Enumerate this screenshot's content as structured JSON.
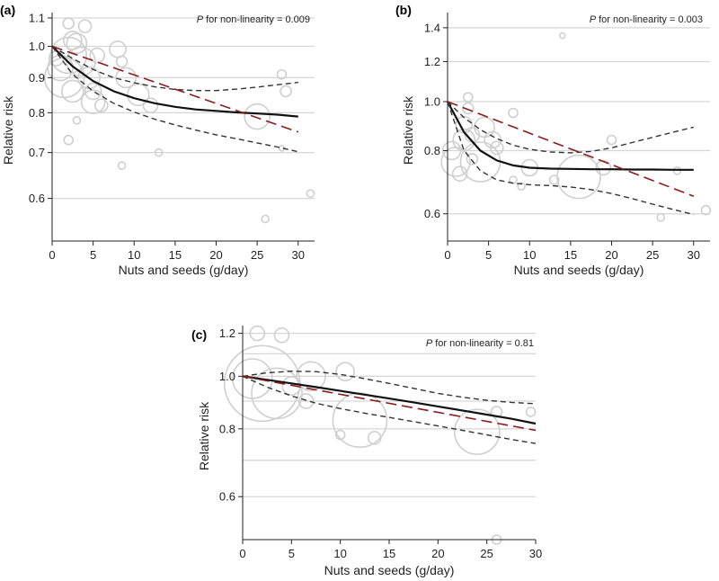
{
  "figure": {
    "annotation_prefix": "P",
    "annotation_text": " for non-linearity = "
  },
  "chart_data": [
    {
      "panel": "(a)",
      "type": "line",
      "scale": "log",
      "xlabel": "Nuts and seeds (g/day)",
      "ylabel": "Relative risk",
      "xlim": [
        0,
        32
      ],
      "ylim": [
        0.52,
        1.12
      ],
      "xticks": [
        0,
        5,
        10,
        15,
        20,
        25,
        30
      ],
      "yticks": [
        0.6,
        0.7,
        0.8,
        0.9,
        1.0,
        1.1
      ],
      "ytick_labels": [
        "0.6",
        "0.7",
        "0.8",
        "0.9",
        "1.0",
        "1.1"
      ],
      "grid": true,
      "p_nonlinearity": "0.009",
      "series": [
        {
          "name": "nonlinear estimate",
          "style": "solid-black",
          "x": [
            0,
            2.5,
            5,
            7.5,
            10,
            12.5,
            15,
            17.5,
            20,
            22.5,
            25,
            27.5,
            30
          ],
          "y": [
            1.0,
            0.935,
            0.89,
            0.86,
            0.84,
            0.826,
            0.816,
            0.809,
            0.805,
            0.801,
            0.798,
            0.795,
            0.79
          ]
        },
        {
          "name": "upper 95% CI",
          "style": "dashed-black",
          "x": [
            0,
            2.5,
            5,
            7.5,
            10,
            12.5,
            15,
            17.5,
            20,
            22.5,
            25,
            27.5,
            30
          ],
          "y": [
            1.0,
            0.96,
            0.925,
            0.9,
            0.885,
            0.873,
            0.865,
            0.862,
            0.862,
            0.866,
            0.872,
            0.879,
            0.886
          ]
        },
        {
          "name": "lower 95% CI",
          "style": "dashed-black",
          "x": [
            0,
            2.5,
            5,
            7.5,
            10,
            12.5,
            15,
            17.5,
            20,
            22.5,
            25,
            27.5,
            30
          ],
          "y": [
            1.0,
            0.91,
            0.86,
            0.826,
            0.802,
            0.783,
            0.768,
            0.755,
            0.743,
            0.733,
            0.723,
            0.713,
            0.702
          ]
        },
        {
          "name": "linear trend",
          "style": "dashed-red",
          "x": [
            0,
            30
          ],
          "y": [
            1.0,
            0.75
          ]
        }
      ],
      "studies": [
        {
          "x": 0.5,
          "y": 0.96,
          "w": 8
        },
        {
          "x": 1.0,
          "y": 0.93,
          "w": 14
        },
        {
          "x": 1.5,
          "y": 0.9,
          "w": 22
        },
        {
          "x": 2.0,
          "y": 0.97,
          "w": 20
        },
        {
          "x": 2.0,
          "y": 1.08,
          "w": 6
        },
        {
          "x": 2.5,
          "y": 0.86,
          "w": 12
        },
        {
          "x": 2.5,
          "y": 1.02,
          "w": 10
        },
        {
          "x": 3.0,
          "y": 1.01,
          "w": 11
        },
        {
          "x": 3.5,
          "y": 0.95,
          "w": 16
        },
        {
          "x": 4.0,
          "y": 1.07,
          "w": 7
        },
        {
          "x": 4.5,
          "y": 0.9,
          "w": 12
        },
        {
          "x": 5.0,
          "y": 0.86,
          "w": 9
        },
        {
          "x": 5.5,
          "y": 0.97,
          "w": 8
        },
        {
          "x": 2.0,
          "y": 0.73,
          "w": 5
        },
        {
          "x": 3.0,
          "y": 0.78,
          "w": 4
        },
        {
          "x": 5.0,
          "y": 0.83,
          "w": 13
        },
        {
          "x": 6.0,
          "y": 0.82,
          "w": 7
        },
        {
          "x": 8.0,
          "y": 0.99,
          "w": 9
        },
        {
          "x": 8.5,
          "y": 0.95,
          "w": 6
        },
        {
          "x": 9.0,
          "y": 0.9,
          "w": 11
        },
        {
          "x": 10.5,
          "y": 0.85,
          "w": 12
        },
        {
          "x": 12.0,
          "y": 0.82,
          "w": 8
        },
        {
          "x": 8.5,
          "y": 0.67,
          "w": 4
        },
        {
          "x": 13.0,
          "y": 0.7,
          "w": 4
        },
        {
          "x": 25.0,
          "y": 0.79,
          "w": 14
        },
        {
          "x": 28.0,
          "y": 0.91,
          "w": 5
        },
        {
          "x": 28.5,
          "y": 0.86,
          "w": 6
        },
        {
          "x": 28.0,
          "y": 0.71,
          "w": 3
        },
        {
          "x": 26.0,
          "y": 0.56,
          "w": 4
        },
        {
          "x": 31.5,
          "y": 0.61,
          "w": 4
        }
      ]
    },
    {
      "panel": "(b)",
      "type": "line",
      "scale": "log",
      "xlabel": "Nuts and seeds (g/day)",
      "ylabel": "Relative risk",
      "xlim": [
        0,
        32
      ],
      "ylim": [
        0.53,
        1.5
      ],
      "xticks": [
        0,
        5,
        10,
        15,
        20,
        25,
        30
      ],
      "yticks": [
        0.6,
        0.8,
        1.0,
        1.2,
        1.4
      ],
      "ytick_labels": [
        "0.6",
        "0.8",
        "1.0",
        "1.2",
        "1.4"
      ],
      "grid": true,
      "p_nonlinearity": "0.003",
      "series": [
        {
          "name": "nonlinear estimate",
          "style": "solid-black",
          "x": [
            0,
            2,
            4,
            6,
            8,
            10,
            12.5,
            15,
            17.5,
            20,
            22.5,
            25,
            27.5,
            30
          ],
          "y": [
            1.0,
            0.87,
            0.8,
            0.765,
            0.748,
            0.74,
            0.737,
            0.736,
            0.735,
            0.735,
            0.734,
            0.734,
            0.733,
            0.733
          ]
        },
        {
          "name": "upper 95% CI",
          "style": "dashed-black",
          "x": [
            0,
            2,
            4,
            6,
            8,
            10,
            12.5,
            15,
            17.5,
            20,
            22.5,
            25,
            27.5,
            30
          ],
          "y": [
            1.0,
            0.93,
            0.88,
            0.845,
            0.82,
            0.805,
            0.795,
            0.792,
            0.797,
            0.81,
            0.83,
            0.85,
            0.87,
            0.89
          ]
        },
        {
          "name": "lower 95% CI",
          "style": "dashed-black",
          "x": [
            0,
            2,
            4,
            6,
            8,
            10,
            12.5,
            15,
            17.5,
            20,
            22.5,
            25,
            27.5,
            30
          ],
          "y": [
            1.0,
            0.8,
            0.73,
            0.7,
            0.69,
            0.685,
            0.682,
            0.678,
            0.67,
            0.658,
            0.643,
            0.627,
            0.612,
            0.598
          ]
        },
        {
          "name": "linear trend",
          "style": "dashed-red",
          "x": [
            0,
            30
          ],
          "y": [
            1.0,
            0.65
          ]
        }
      ],
      "studies": [
        {
          "x": 0.5,
          "y": 0.8,
          "w": 10
        },
        {
          "x": 1.0,
          "y": 0.76,
          "w": 16
        },
        {
          "x": 1.5,
          "y": 0.72,
          "w": 8
        },
        {
          "x": 2.0,
          "y": 0.9,
          "w": 9
        },
        {
          "x": 2.0,
          "y": 0.84,
          "w": 12
        },
        {
          "x": 2.5,
          "y": 0.97,
          "w": 6
        },
        {
          "x": 2.5,
          "y": 1.02,
          "w": 5
        },
        {
          "x": 3.0,
          "y": 0.86,
          "w": 8
        },
        {
          "x": 3.0,
          "y": 0.77,
          "w": 6
        },
        {
          "x": 4.0,
          "y": 0.76,
          "w": 22
        },
        {
          "x": 4.5,
          "y": 0.89,
          "w": 11
        },
        {
          "x": 5.5,
          "y": 0.84,
          "w": 9
        },
        {
          "x": 6.0,
          "y": 0.81,
          "w": 7
        },
        {
          "x": 8.0,
          "y": 0.95,
          "w": 5
        },
        {
          "x": 8.0,
          "y": 0.7,
          "w": 4
        },
        {
          "x": 9.0,
          "y": 0.68,
          "w": 4
        },
        {
          "x": 10.0,
          "y": 0.74,
          "w": 9
        },
        {
          "x": 13.0,
          "y": 0.7,
          "w": 5
        },
        {
          "x": 14.0,
          "y": 1.35,
          "w": 3
        },
        {
          "x": 16.0,
          "y": 0.71,
          "w": 24
        },
        {
          "x": 19.0,
          "y": 0.74,
          "w": 8
        },
        {
          "x": 20.0,
          "y": 0.84,
          "w": 5
        },
        {
          "x": 26.0,
          "y": 0.59,
          "w": 4
        },
        {
          "x": 28.0,
          "y": 0.73,
          "w": 4
        },
        {
          "x": 31.5,
          "y": 0.61,
          "w": 5
        }
      ]
    },
    {
      "panel": "(c)",
      "type": "line",
      "scale": "log",
      "xlabel": "Nuts and seeds (g/day)",
      "ylabel": "Relative risk",
      "xlim": [
        0,
        30
      ],
      "ylim": [
        0.5,
        1.24
      ],
      "xticks": [
        0,
        5,
        10,
        15,
        20,
        25,
        30
      ],
      "yticks": [
        0.6,
        0.8,
        1.0,
        1.2
      ],
      "ytick_labels": [
        "0.6",
        "0.8",
        "1.0",
        "1.2"
      ],
      "extra_gridlines": [
        0.7,
        0.9,
        1.1
      ],
      "grid": true,
      "p_nonlinearity": "0.81",
      "series": [
        {
          "name": "nonlinear estimate",
          "style": "solid-black",
          "x": [
            0,
            2.5,
            5,
            7.5,
            10,
            12.5,
            15,
            17.5,
            20,
            22.5,
            25,
            27.5,
            30
          ],
          "y": [
            1.0,
            0.985,
            0.97,
            0.955,
            0.94,
            0.925,
            0.91,
            0.895,
            0.88,
            0.865,
            0.85,
            0.835,
            0.818
          ]
        },
        {
          "name": "upper 95% CI",
          "style": "dashed-black",
          "x": [
            0,
            2.5,
            5,
            7.5,
            10,
            12.5,
            15,
            17.5,
            20,
            22.5,
            25,
            27.5,
            30
          ],
          "y": [
            1.0,
            1.015,
            1.022,
            1.02,
            1.008,
            0.99,
            0.97,
            0.95,
            0.93,
            0.915,
            0.903,
            0.895,
            0.89
          ]
        },
        {
          "name": "lower 95% CI",
          "style": "dashed-black",
          "x": [
            0,
            2.5,
            5,
            7.5,
            10,
            12.5,
            15,
            17.5,
            20,
            22.5,
            25,
            27.5,
            30
          ],
          "y": [
            1.0,
            0.955,
            0.92,
            0.892,
            0.872,
            0.855,
            0.84,
            0.825,
            0.81,
            0.795,
            0.78,
            0.765,
            0.752
          ]
        },
        {
          "name": "linear trend",
          "style": "dashed-red",
          "x": [
            0,
            30
          ],
          "y": [
            1.0,
            0.795
          ]
        }
      ],
      "studies": [
        {
          "x": 1.0,
          "y": 0.99,
          "w": 22
        },
        {
          "x": 2.0,
          "y": 0.97,
          "w": 42
        },
        {
          "x": 1.5,
          "y": 1.2,
          "w": 8
        },
        {
          "x": 4.0,
          "y": 1.19,
          "w": 8
        },
        {
          "x": 3.5,
          "y": 0.93,
          "w": 28
        },
        {
          "x": 5.0,
          "y": 0.96,
          "w": 10
        },
        {
          "x": 6.5,
          "y": 0.9,
          "w": 8
        },
        {
          "x": 7.0,
          "y": 1.0,
          "w": 16
        },
        {
          "x": 10.5,
          "y": 1.02,
          "w": 10
        },
        {
          "x": 12.0,
          "y": 0.83,
          "w": 30
        },
        {
          "x": 13.5,
          "y": 0.77,
          "w": 7
        },
        {
          "x": 10.0,
          "y": 0.78,
          "w": 5
        },
        {
          "x": 24.0,
          "y": 0.79,
          "w": 25
        },
        {
          "x": 26.0,
          "y": 0.86,
          "w": 6
        },
        {
          "x": 26.0,
          "y": 0.5,
          "w": 5
        },
        {
          "x": 29.5,
          "y": 0.86,
          "w": 5
        }
      ]
    }
  ]
}
